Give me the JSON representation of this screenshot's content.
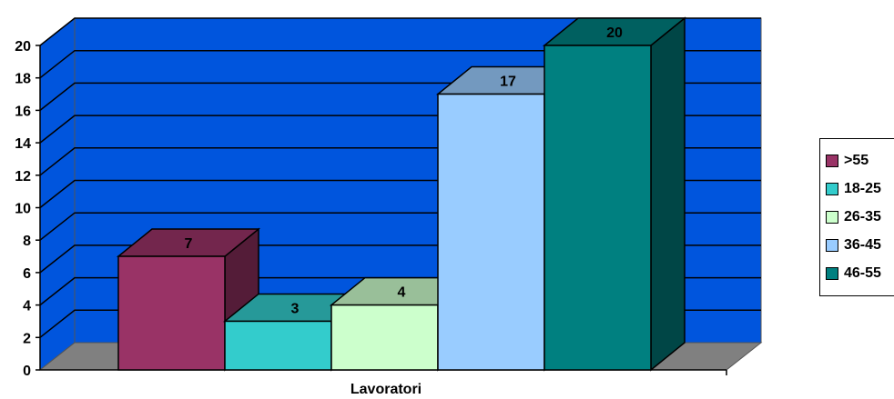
{
  "chart_data": {
    "type": "bar",
    "style": "3d-clustered",
    "title": "",
    "xlabel": "Lavoratori",
    "ylabel": "",
    "ylim": [
      0,
      20
    ],
    "y_ticks": [
      "0",
      "2",
      "4",
      "6",
      "8",
      "10",
      "12",
      "14",
      "16",
      "18",
      "20"
    ],
    "grid": true,
    "legend_position": "right",
    "categories": [
      "Lavoratori"
    ],
    "series": [
      {
        "name": ">55",
        "values": [
          7
        ],
        "label": "7",
        "color": "#993366"
      },
      {
        "name": "18-25",
        "values": [
          3
        ],
        "label": "3",
        "color": "#33CCCC"
      },
      {
        "name": "26-35",
        "values": [
          4
        ],
        "label": "4",
        "color": "#CCFFCC"
      },
      {
        "name": "36-45",
        "values": [
          17
        ],
        "label": "17",
        "color": "#99CCFF"
      },
      {
        "name": "46-55",
        "values": [
          20
        ],
        "label": "20",
        "color": "#008080"
      }
    ],
    "plot_background": "#0055DD",
    "floor_color": "#808080"
  }
}
